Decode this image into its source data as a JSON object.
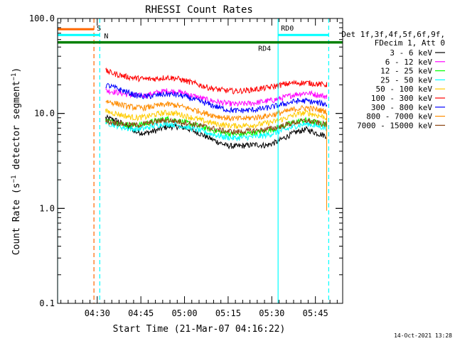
{
  "chart_data": {
    "type": "line",
    "title": "RHESSI Count Rates",
    "xlabel": "Start Time (21-Mar-07 04:16:22)",
    "ylabel_main": "Count Rate (s",
    "ylabel_exp": "−1",
    "ylabel_mid": " detector segment",
    "ylabel_exp2": "−1",
    "ylabel_end": ")",
    "y_scale": "log",
    "ylim": [
      0.1,
      100
    ],
    "xlim_minutes": [
      0,
      98
    ],
    "x_ticks": [
      {
        "label": "04:30",
        "minute": 13.63
      },
      {
        "label": "04:45",
        "minute": 28.63
      },
      {
        "label": "05:00",
        "minute": 43.63
      },
      {
        "label": "05:15",
        "minute": 58.63
      },
      {
        "label": "05:30",
        "minute": 73.63
      },
      {
        "label": "05:45",
        "minute": 88.63
      }
    ],
    "y_ticks": [
      {
        "label": "0.1",
        "value": 0.1
      },
      {
        "label": "1.0",
        "value": 1
      },
      {
        "label": "10.0",
        "value": 10
      },
      {
        "label": "100.0",
        "value": 100
      }
    ],
    "legend_header": [
      "Det 1f,3f,4f,5f,6f,9f,",
      "FDecim 1, Att 0"
    ],
    "legend_placement": "right",
    "data_start_minute": 16.5,
    "data_end_minute": 92.5,
    "series": [
      {
        "name": "3 - 6 keV",
        "color": "#000000",
        "values": [
          9.0,
          8.5,
          7.5,
          6.4,
          6.2,
          6.6,
          7.2,
          7.3,
          7.0,
          6.4,
          5.7,
          5.1,
          4.6,
          4.5,
          4.6,
          4.7,
          4.6,
          5.0,
          5.7,
          6.4,
          6.8,
          6.2,
          5.8
        ]
      },
      {
        "name": "6 - 12 keV",
        "color": "#ff00ff",
        "values": [
          17.5,
          16.8,
          16.0,
          15.3,
          15.5,
          16.5,
          17.3,
          17.0,
          16.2,
          15.0,
          14.0,
          13.3,
          12.8,
          12.5,
          12.7,
          13.0,
          13.5,
          14.0,
          15.0,
          16.0,
          16.5,
          15.8,
          15.0
        ]
      },
      {
        "name": "12 - 25 keV",
        "color": "#00ff00",
        "values": [
          8.5,
          8.0,
          7.6,
          7.5,
          7.8,
          8.4,
          8.8,
          8.5,
          8.0,
          7.5,
          7.0,
          6.5,
          6.2,
          6.0,
          6.1,
          6.3,
          6.5,
          7.0,
          7.6,
          8.2,
          8.5,
          8.0,
          7.6
        ]
      },
      {
        "name": "25 - 50 keV",
        "color": "#00ffff",
        "values": [
          8.0,
          7.5,
          7.0,
          6.8,
          7.0,
          7.5,
          7.8,
          7.6,
          7.2,
          6.8,
          6.3,
          5.9,
          5.6,
          5.5,
          5.6,
          5.7,
          5.9,
          6.3,
          6.8,
          7.4,
          7.8,
          7.4,
          7.0
        ]
      },
      {
        "name": "50 - 100 keV",
        "color": "#ffcc00",
        "values": [
          10.5,
          10.0,
          9.4,
          9.0,
          9.2,
          9.8,
          10.2,
          10.0,
          9.4,
          8.8,
          8.2,
          7.8,
          7.5,
          7.4,
          7.5,
          7.6,
          7.9,
          8.3,
          9.0,
          9.8,
          10.2,
          9.6,
          9.0
        ]
      },
      {
        "name": "100 - 300 keV",
        "color": "#ff0000",
        "values": [
          28.0,
          26.0,
          24.5,
          23.5,
          23.0,
          23.2,
          24.0,
          23.5,
          22.0,
          20.5,
          19.0,
          18.0,
          17.4,
          17.2,
          17.5,
          18.0,
          18.6,
          19.5,
          20.5,
          21.0,
          21.0,
          20.5,
          20.0
        ]
      },
      {
        "name": "300 - 800 keV",
        "color": "#0000ff",
        "values": [
          20.0,
          18.5,
          17.0,
          15.5,
          15.0,
          15.5,
          16.0,
          15.8,
          15.0,
          13.8,
          12.8,
          11.8,
          11.0,
          10.7,
          10.8,
          11.0,
          11.4,
          12.0,
          12.8,
          13.5,
          13.6,
          13.0,
          12.5
        ]
      },
      {
        "name": "800 - 7000 keV",
        "color": "#ff8c00",
        "values": [
          13.5,
          12.8,
          12.0,
          11.5,
          11.5,
          12.0,
          12.5,
          12.2,
          11.5,
          10.8,
          10.0,
          9.4,
          9.0,
          8.8,
          8.9,
          9.1,
          9.4,
          9.9,
          10.5,
          11.2,
          11.5,
          11.0,
          10.5
        ]
      },
      {
        "name": "7000 - 15000 keV",
        "color": "#8b4513",
        "values": [
          8.3,
          8.0,
          7.7,
          7.5,
          7.8,
          8.2,
          8.5,
          8.3,
          8.0,
          7.6,
          7.2,
          6.8,
          6.5,
          6.4,
          6.5,
          6.6,
          6.8,
          7.1,
          7.6,
          8.1,
          8.4,
          8.0,
          7.6
        ]
      }
    ],
    "annotations": [
      {
        "label": "S",
        "color": "#ff6600",
        "start_minute": 0,
        "end_minute": 12.5,
        "value": 77
      },
      {
        "label": "N",
        "color": "#00ffff",
        "start_minute": 0,
        "end_minute": 14.5,
        "value": 67
      },
      {
        "label": "RD4",
        "color": "#008000",
        "start_minute": 0,
        "end_minute": 98,
        "value": 56
      },
      {
        "label": "RD0",
        "color": "#00ffff",
        "start_minute": 75.8,
        "end_minute": 93.2,
        "value": 67
      }
    ],
    "vertical_markers": [
      {
        "minute": 0,
        "color": "#00ffff",
        "style": "solid"
      },
      {
        "minute": 12.5,
        "color": "#ff6600",
        "style": "dashed"
      },
      {
        "minute": 14.5,
        "color": "#00ffff",
        "style": "dashed"
      },
      {
        "minute": 75.8,
        "color": "#00ffff",
        "style": "solid"
      },
      {
        "minute": 93.2,
        "color": "#00ffff",
        "style": "dashed"
      }
    ]
  },
  "footer_date": "14-Oct-2021 13:28"
}
